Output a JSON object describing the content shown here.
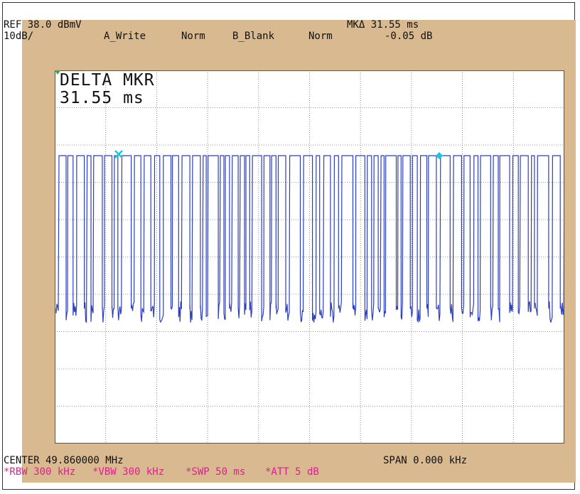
{
  "header": {
    "ref": "REF 38.0 dBmV",
    "scale": "10dB/",
    "trace_a": "A_Write",
    "trace_a_mode": "Norm",
    "trace_b": "B_Blank",
    "trace_b_mode": "Norm",
    "marker_time": "MKΔ 31.55 ms",
    "marker_level": "-0.05 dB"
  },
  "screen": {
    "delta_title": "DELTA MKR",
    "delta_value": "31.55 ms"
  },
  "footer": {
    "center": "CENTER 49.860000 MHz",
    "span": "SPAN 0.000 kHz",
    "rbw": "*RBW 300 kHz",
    "vbw": "*VBW 300 kHz",
    "swp": "*SWP 50 ms",
    "att": "*ATT 5 dB"
  },
  "colors": {
    "panel": "#d9b98f",
    "trace": "#2c3fc0",
    "marker": "#19c7d8",
    "reference_marker": "#22b14c",
    "settings_text": "#e0208c"
  },
  "icons": {
    "reference_marker": "reference-triangle-icon",
    "marker_1": "marker-cross-icon",
    "marker_2": "marker-diamond-icon"
  }
}
